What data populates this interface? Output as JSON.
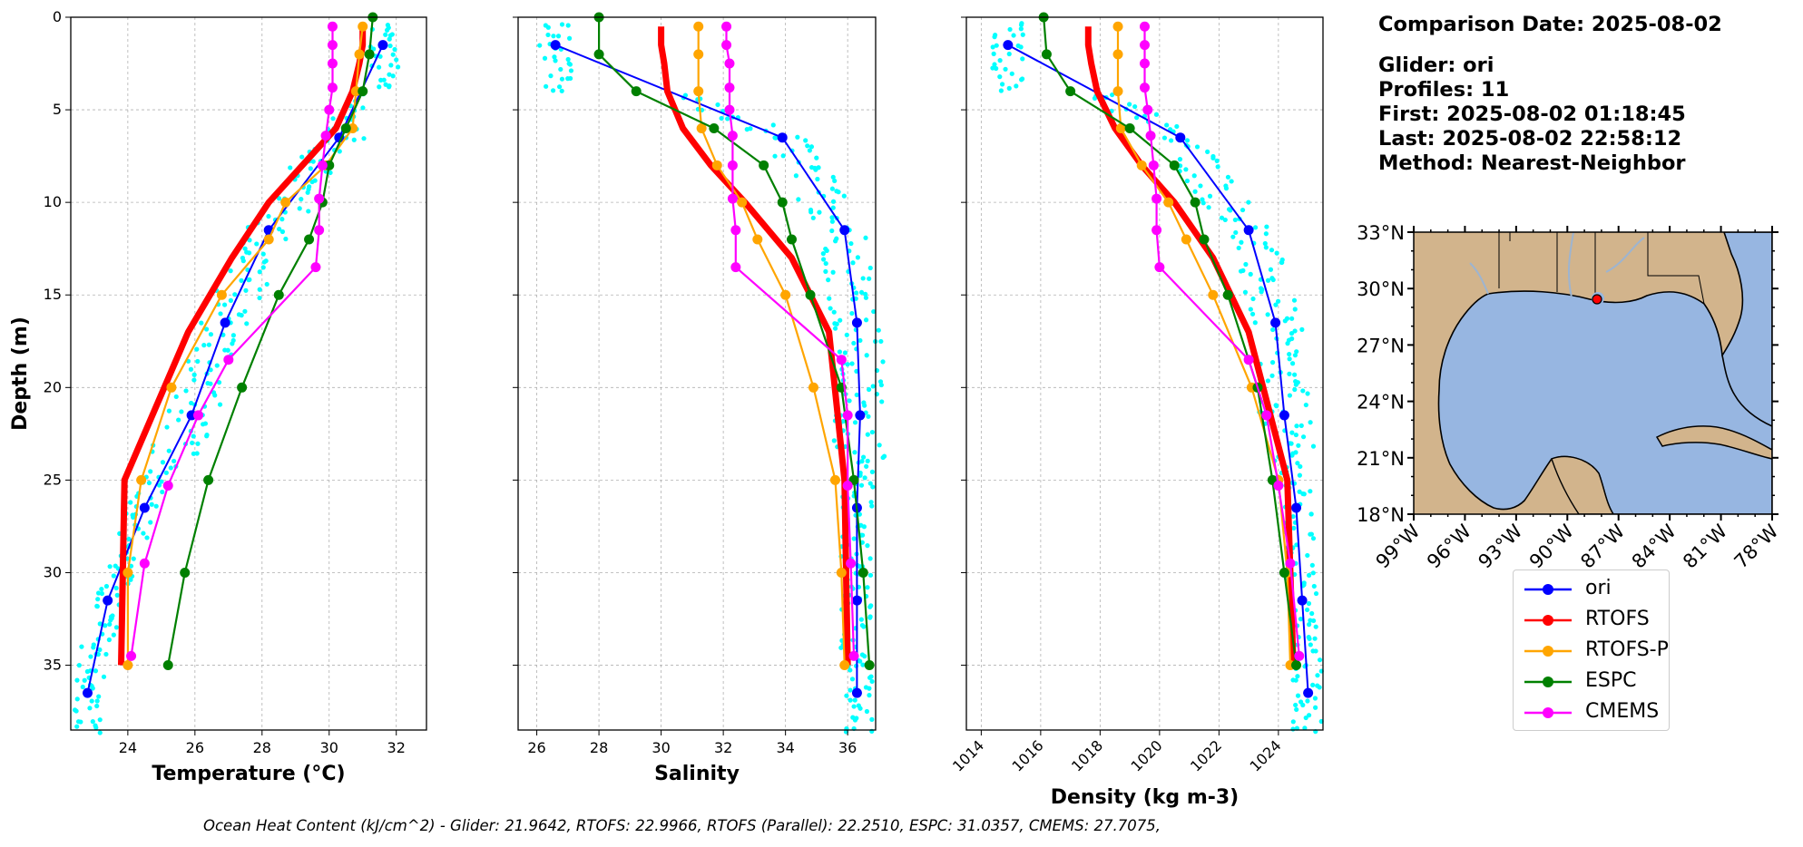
{
  "chart_data": {
    "type": "line",
    "y_axis": {
      "label": "Depth (m)",
      "inverted": true,
      "ylim": [
        38.5,
        0
      ],
      "ticks": [
        0,
        5,
        10,
        15,
        20,
        25,
        30,
        35
      ]
    },
    "grid": true,
    "legend_placement": "below-map",
    "panels": [
      {
        "id": "temperature",
        "xlabel": "Temperature (°C)",
        "xlim": [
          22.3,
          32.9
        ],
        "xticks": [
          24,
          26,
          28,
          30,
          32
        ],
        "series": [
          {
            "name": "ori",
            "color": "#0000ff",
            "x": [
              31.6,
              30.3,
              28.2,
              26.9,
              25.9,
              24.5,
              23.4,
              22.8
            ],
            "y": [
              1.5,
              6.5,
              11.5,
              16.5,
              21.5,
              26.5,
              31.5,
              36.5
            ]
          },
          {
            "name": "RTOFS",
            "color": "#ff0000",
            "x": [
              31.0,
              31.0,
              30.9,
              30.7,
              30.2,
              29.2,
              28.2,
              27.1,
              25.8,
              23.9,
              23.8
            ],
            "y": [
              0.5,
              1.5,
              2.5,
              4.0,
              6.0,
              8.0,
              10.0,
              13.0,
              17.0,
              25.0,
              35.0
            ]
          },
          {
            "name": "RTOFS-P",
            "color": "#ffa500",
            "x": [
              31.0,
              30.9,
              30.8,
              30.7,
              29.9,
              28.7,
              28.2,
              26.8,
              25.3,
              24.4,
              24.0,
              24.0
            ],
            "y": [
              0.5,
              2.0,
              4.0,
              6.0,
              8.0,
              10.0,
              12.0,
              15.0,
              20.0,
              25.0,
              30.0,
              35.0
            ]
          },
          {
            "name": "ESPC",
            "color": "#008000",
            "x": [
              31.3,
              31.2,
              31.0,
              30.5,
              30.0,
              29.8,
              29.4,
              28.5,
              27.4,
              26.4,
              25.7,
              25.2
            ],
            "y": [
              0.0,
              2.0,
              4.0,
              6.0,
              8.0,
              10.0,
              12.0,
              15.0,
              20.0,
              25.0,
              30.0,
              35.0
            ]
          },
          {
            "name": "CMEMS",
            "color": "#ff00ff",
            "x": [
              30.1,
              30.1,
              30.1,
              30.1,
              30.0,
              29.9,
              29.8,
              29.7,
              29.7,
              29.6,
              27.0,
              26.1,
              25.2,
              24.5,
              24.1
            ],
            "y": [
              0.5,
              1.5,
              2.5,
              3.8,
              5.0,
              6.4,
              8.0,
              9.8,
              11.5,
              13.5,
              18.5,
              21.5,
              25.3,
              29.5,
              34.5
            ]
          }
        ]
      },
      {
        "id": "salinity",
        "xlabel": "Salinity",
        "xlim": [
          25.4,
          36.9
        ],
        "xticks": [
          26,
          28,
          30,
          32,
          34,
          36
        ],
        "series": [
          {
            "name": "ori",
            "color": "#0000ff",
            "x": [
              26.6,
              33.9,
              35.9,
              36.3,
              36.4,
              36.3,
              36.3,
              36.3
            ],
            "y": [
              1.5,
              6.5,
              11.5,
              16.5,
              21.5,
              26.5,
              31.5,
              36.5
            ]
          },
          {
            "name": "RTOFS",
            "color": "#ff0000",
            "x": [
              30.0,
              30.0,
              30.1,
              30.2,
              30.7,
              31.6,
              32.7,
              34.2,
              35.4,
              35.9,
              36.0
            ],
            "y": [
              0.5,
              1.5,
              2.5,
              4.0,
              6.0,
              8.0,
              10.0,
              13.0,
              17.0,
              25.0,
              35.0
            ]
          },
          {
            "name": "RTOFS-P",
            "color": "#ffa500",
            "x": [
              31.2,
              31.2,
              31.2,
              31.3,
              31.8,
              32.6,
              33.1,
              34.0,
              34.9,
              35.6,
              35.8,
              35.9
            ],
            "y": [
              0.5,
              2.0,
              4.0,
              6.0,
              8.0,
              10.0,
              12.0,
              15.0,
              20.0,
              25.0,
              30.0,
              35.0
            ]
          },
          {
            "name": "ESPC",
            "color": "#008000",
            "x": [
              28.0,
              28.0,
              29.2,
              31.7,
              33.3,
              33.9,
              34.2,
              34.8,
              35.8,
              36.2,
              36.5,
              36.7
            ],
            "y": [
              0.0,
              2.0,
              4.0,
              6.0,
              8.0,
              10.0,
              12.0,
              15.0,
              20.0,
              25.0,
              30.0,
              35.0
            ]
          },
          {
            "name": "CMEMS",
            "color": "#ff00ff",
            "x": [
              32.1,
              32.1,
              32.2,
              32.2,
              32.2,
              32.3,
              32.3,
              32.3,
              32.4,
              32.4,
              35.8,
              36.0,
              36.0,
              36.1,
              36.2
            ],
            "y": [
              0.5,
              1.5,
              2.5,
              3.8,
              5.0,
              6.4,
              8.0,
              9.8,
              11.5,
              13.5,
              18.5,
              21.5,
              25.3,
              29.5,
              34.5
            ]
          }
        ]
      },
      {
        "id": "density",
        "xlabel": "Density (kg m-3)",
        "xlim": [
          1013.5,
          1025.5
        ],
        "xticks": [
          1014,
          1016,
          1018,
          1020,
          1022,
          1024
        ],
        "tick_rotation": 45,
        "series": [
          {
            "name": "ori",
            "color": "#0000ff",
            "x": [
              1014.9,
              1020.7,
              1023.0,
              1023.9,
              1024.2,
              1024.6,
              1024.8,
              1025.0
            ],
            "y": [
              1.5,
              6.5,
              11.5,
              16.5,
              21.5,
              26.5,
              31.5,
              36.5
            ]
          },
          {
            "name": "RTOFS",
            "color": "#ff0000",
            "x": [
              1017.6,
              1017.6,
              1017.7,
              1017.9,
              1018.5,
              1019.4,
              1020.5,
              1021.8,
              1023.0,
              1024.3,
              1024.5
            ],
            "y": [
              0.5,
              1.5,
              2.5,
              4.0,
              6.0,
              8.0,
              10.0,
              13.0,
              17.0,
              25.0,
              35.0
            ]
          },
          {
            "name": "RTOFS-P",
            "color": "#ffa500",
            "x": [
              1018.6,
              1018.6,
              1018.6,
              1018.7,
              1019.4,
              1020.3,
              1020.9,
              1021.8,
              1023.1,
              1024.0,
              1024.3,
              1024.4
            ],
            "y": [
              0.5,
              2.0,
              4.0,
              6.0,
              8.0,
              10.0,
              12.0,
              15.0,
              20.0,
              25.0,
              30.0,
              35.0
            ]
          },
          {
            "name": "ESPC",
            "color": "#008000",
            "x": [
              1016.1,
              1016.2,
              1017.0,
              1019.0,
              1020.5,
              1021.2,
              1021.5,
              1022.3,
              1023.3,
              1023.8,
              1024.2,
              1024.6
            ],
            "y": [
              0.0,
              2.0,
              4.0,
              6.0,
              8.0,
              10.0,
              12.0,
              15.0,
              20.0,
              25.0,
              30.0,
              35.0
            ]
          },
          {
            "name": "CMEMS",
            "color": "#ff00ff",
            "x": [
              1019.5,
              1019.5,
              1019.5,
              1019.5,
              1019.6,
              1019.7,
              1019.8,
              1019.9,
              1019.9,
              1020.0,
              1023.0,
              1023.6,
              1024.0,
              1024.4,
              1024.7
            ],
            "y": [
              0.5,
              1.5,
              2.5,
              3.8,
              5.0,
              6.4,
              8.0,
              9.8,
              11.5,
              13.5,
              18.5,
              21.5,
              25.3,
              29.5,
              34.5
            ]
          }
        ]
      }
    ],
    "scatter_color": "#00ffff"
  },
  "info": {
    "date": "Comparison Date: 2025-08-02",
    "glider": "Glider: ori",
    "profiles": "Profiles: 11",
    "first": "First: 2025-08-02 01:18:45",
    "last": "Last: 2025-08-02 22:58:12",
    "method": "Method: Nearest-Neighbor"
  },
  "map": {
    "lat_ticks": [
      "33°N",
      "30°N",
      "27°N",
      "24°N",
      "21°N",
      "18°N"
    ],
    "lon_ticks": [
      "99°W",
      "96°W",
      "93°W",
      "90°W",
      "87°W",
      "84°W",
      "81°W",
      "78°W"
    ],
    "land_color": "#d2b48c",
    "ocean_color": "#97b6e1",
    "glider_marker_color": "#ff0000"
  },
  "legend": [
    "ori",
    "RTOFS",
    "RTOFS-P",
    "ESPC",
    "CMEMS"
  ],
  "footer": "Ocean Heat Content (kJ/cm^2) - Glider: 21.9642,  RTOFS: 22.9966,  RTOFS (Parallel): 22.2510,  ESPC: 31.0357,  CMEMS: 27.7075,"
}
